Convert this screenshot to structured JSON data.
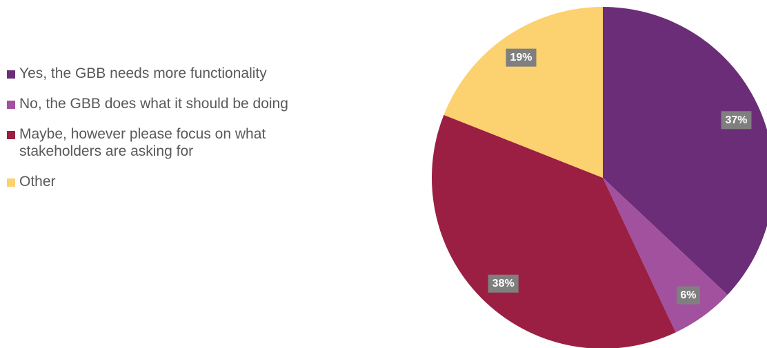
{
  "chart_data": {
    "type": "pie",
    "legend_position": "left",
    "start_angle_deg": 0,
    "slices": [
      {
        "label": "Yes, the GBB needs more functionality",
        "value": 37,
        "display": "37%",
        "color": "#6b2d78"
      },
      {
        "label": "No, the GBB does what it should be doing",
        "value": 6,
        "display": "6%",
        "color": "#a2519f"
      },
      {
        "label": "Maybe, however please focus on what stakeholders are asking for",
        "value": 38,
        "display": "38%",
        "color": "#9b1f42"
      },
      {
        "label": "Other",
        "value": 19,
        "display": "19%",
        "color": "#fcd16f"
      }
    ]
  }
}
